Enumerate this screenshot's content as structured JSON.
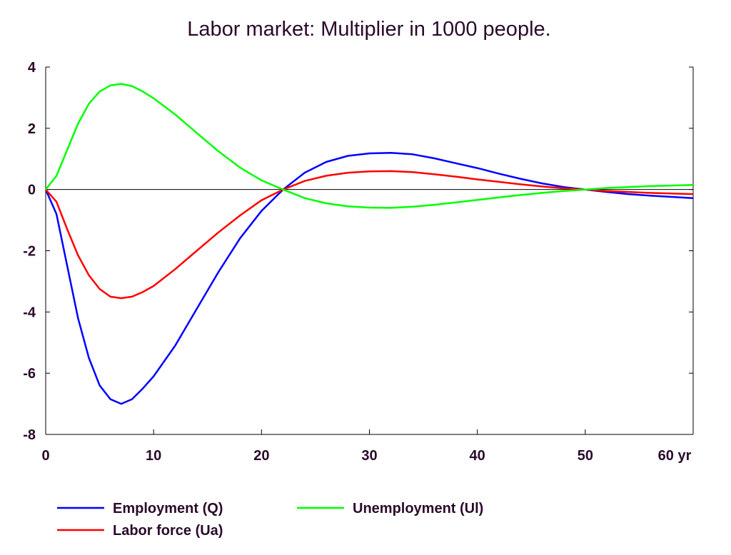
{
  "chart_data": {
    "type": "line",
    "title": "Labor market: Multiplier in 1000 people.",
    "xlabel": "",
    "ylabel": "",
    "xlim": [
      0,
      60
    ],
    "ylim": [
      -8,
      4
    ],
    "x_ticks": [
      0,
      10,
      20,
      30,
      40,
      50,
      60
    ],
    "x_tick_labels": [
      "0",
      "10",
      "20",
      "30",
      "40",
      "50",
      "60 yr"
    ],
    "y_ticks": [
      4,
      2,
      0,
      -2,
      -4,
      -6,
      -8
    ],
    "y_tick_labels": [
      "4",
      "2",
      "0",
      "-2",
      "-4",
      "-6",
      "-8"
    ],
    "grid": false,
    "zero_line": true,
    "legend_position": "bottom",
    "x": [
      0,
      1,
      2,
      3,
      4,
      5,
      6,
      7,
      8,
      9,
      10,
      12,
      14,
      16,
      18,
      20,
      22,
      24,
      26,
      28,
      30,
      32,
      34,
      36,
      38,
      40,
      42,
      44,
      46,
      48,
      50,
      52,
      54,
      56,
      58,
      60
    ],
    "series": [
      {
        "name": "Employment (Q)",
        "color": "#0000ff",
        "values": [
          0,
          -0.8,
          -2.5,
          -4.2,
          -5.5,
          -6.4,
          -6.85,
          -7.0,
          -6.85,
          -6.5,
          -6.1,
          -5.1,
          -3.9,
          -2.7,
          -1.6,
          -0.7,
          0.0,
          0.55,
          0.9,
          1.1,
          1.18,
          1.2,
          1.15,
          1.02,
          0.86,
          0.7,
          0.52,
          0.35,
          0.2,
          0.08,
          0.0,
          -0.08,
          -0.15,
          -0.2,
          -0.24,
          -0.28
        ]
      },
      {
        "name": "Labor force (Ua)",
        "color": "#ff0000",
        "values": [
          0,
          -0.4,
          -1.3,
          -2.15,
          -2.8,
          -3.25,
          -3.5,
          -3.55,
          -3.5,
          -3.35,
          -3.15,
          -2.6,
          -2.0,
          -1.4,
          -0.85,
          -0.35,
          0.0,
          0.28,
          0.45,
          0.55,
          0.59,
          0.6,
          0.57,
          0.5,
          0.42,
          0.33,
          0.25,
          0.17,
          0.1,
          0.04,
          0.0,
          -0.05,
          -0.08,
          -0.11,
          -0.13,
          -0.15
        ]
      },
      {
        "name": "Unemployment (Ul)",
        "color": "#00ff00",
        "values": [
          0,
          0.45,
          1.3,
          2.15,
          2.8,
          3.2,
          3.4,
          3.45,
          3.38,
          3.2,
          2.98,
          2.45,
          1.85,
          1.25,
          0.72,
          0.3,
          0.0,
          -0.28,
          -0.45,
          -0.55,
          -0.59,
          -0.6,
          -0.56,
          -0.5,
          -0.42,
          -0.34,
          -0.26,
          -0.18,
          -0.11,
          -0.05,
          0.0,
          0.05,
          0.08,
          0.11,
          0.13,
          0.15
        ]
      }
    ]
  }
}
